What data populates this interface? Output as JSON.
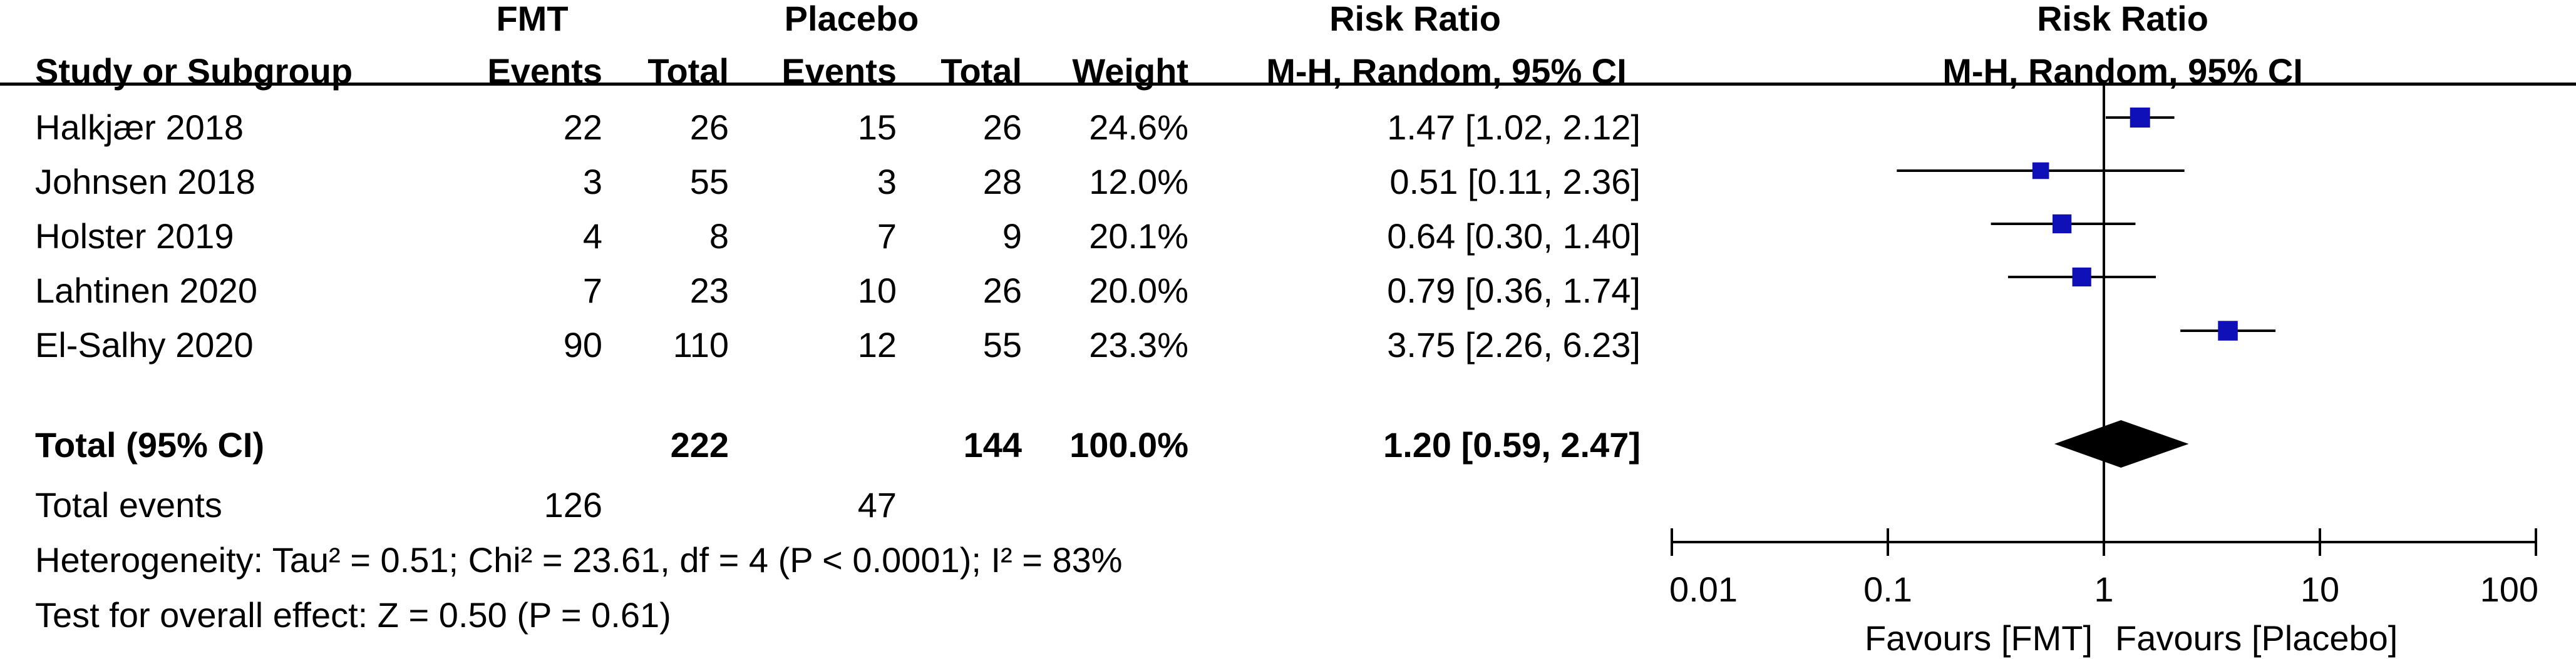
{
  "header": {
    "group1": "FMT",
    "group2": "Placebo",
    "rr_col": "Risk Ratio",
    "plot_title": "Risk Ratio",
    "study_col": "Study or Subgroup",
    "events1": "Events",
    "total1": "Total",
    "events2": "Events",
    "total2": "Total",
    "weight": "Weight",
    "method": "M-H, Random, 95% CI",
    "plot_method": "M-H, Random, 95% CI"
  },
  "studies": [
    {
      "name": "Halkjær 2018",
      "fmt_events": "22",
      "fmt_total": "26",
      "pl_events": "15",
      "pl_total": "26",
      "weight": "24.6%",
      "ci_text": "1.47 [1.02, 2.12]"
    },
    {
      "name": "Johnsen 2018",
      "fmt_events": "3",
      "fmt_total": "55",
      "pl_events": "3",
      "pl_total": "28",
      "weight": "12.0%",
      "ci_text": "0.51 [0.11, 2.36]"
    },
    {
      "name": "Holster 2019",
      "fmt_events": "4",
      "fmt_total": "8",
      "pl_events": "7",
      "pl_total": "9",
      "weight": "20.1%",
      "ci_text": "0.64 [0.30, 1.40]"
    },
    {
      "name": "Lahtinen 2020",
      "fmt_events": "7",
      "fmt_total": "23",
      "pl_events": "10",
      "pl_total": "26",
      "weight": "20.0%",
      "ci_text": "0.79 [0.36, 1.74]"
    },
    {
      "name": "El-Salhy 2020",
      "fmt_events": "90",
      "fmt_total": "110",
      "pl_events": "12",
      "pl_total": "55",
      "weight": "23.3%",
      "ci_text": "3.75 [2.26, 6.23]"
    }
  ],
  "total": {
    "label": "Total (95% CI)",
    "fmt_total": "222",
    "pl_total": "144",
    "weight": "100.0%",
    "ci_text": "1.20 [0.59, 2.47]"
  },
  "events": {
    "label": "Total events",
    "fmt": "126",
    "pl": "47"
  },
  "footer": {
    "heterogeneity": "Heterogeneity: Tau² = 0.51; Chi² = 23.61, df = 4 (P < 0.0001); I² = 83%",
    "overall": "Test for overall effect: Z = 0.50 (P = 0.61)"
  },
  "chart_data": {
    "type": "forest",
    "title": "Risk Ratio",
    "subtitle": "M-H, Random, 95% CI",
    "x_scale": "log",
    "xlim": [
      0.01,
      100
    ],
    "x_ticks": [
      0.01,
      0.1,
      1,
      10,
      100
    ],
    "x_tick_labels": [
      "0.01",
      "0.1",
      "1",
      "10",
      "100"
    ],
    "reference_line": 1,
    "favours_left": "Favours [FMT]",
    "favours_right": "Favours [Placebo]",
    "studies": [
      {
        "name": "Halkjær 2018",
        "rr": 1.47,
        "lower": 1.02,
        "upper": 2.12,
        "weight": 24.6
      },
      {
        "name": "Johnsen 2018",
        "rr": 0.51,
        "lower": 0.11,
        "upper": 2.36,
        "weight": 12.0
      },
      {
        "name": "Holster 2019",
        "rr": 0.64,
        "lower": 0.3,
        "upper": 1.4,
        "weight": 20.1
      },
      {
        "name": "Lahtinen 2020",
        "rr": 0.79,
        "lower": 0.36,
        "upper": 1.74,
        "weight": 20.0
      },
      {
        "name": "El-Salhy 2020",
        "rr": 3.75,
        "lower": 2.26,
        "upper": 6.23,
        "weight": 23.3
      }
    ],
    "pooled": {
      "rr": 1.2,
      "lower": 0.59,
      "upper": 2.47
    },
    "colors": {
      "marker": "#1010b8",
      "diamond": "#000000",
      "line": "#000000"
    }
  }
}
